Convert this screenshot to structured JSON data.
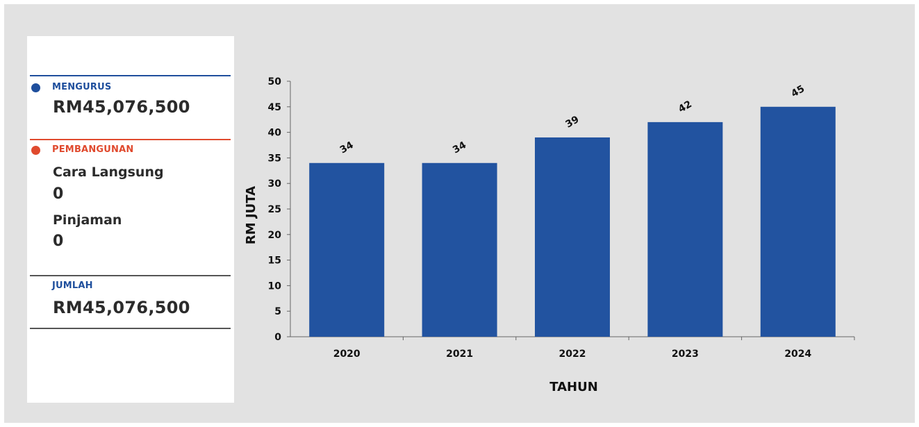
{
  "summary": {
    "mengurus": {
      "label": "MENGURUS",
      "amount": "RM45,076,500"
    },
    "pembangunan": {
      "label": "PEMBANGUNAN",
      "items": [
        {
          "label": "Cara Langsung",
          "value": "0"
        },
        {
          "label": "Pinjaman",
          "value": "0"
        }
      ]
    },
    "jumlah": {
      "label": "JUMLAH",
      "amount": "RM45,076,500"
    }
  },
  "colors": {
    "mengurus": "#1f4f9d",
    "pembangunan": "#e04a2e",
    "bar": "#2253a0",
    "background": "#e2e2e2"
  },
  "chart_data": {
    "type": "bar",
    "categories": [
      "2020",
      "2021",
      "2022",
      "2023",
      "2024"
    ],
    "values": [
      34,
      34,
      39,
      42,
      45
    ],
    "data_labels": [
      "34",
      "34",
      "39",
      "42",
      "45"
    ],
    "xlabel": "TAHUN",
    "ylabel": "RM JUTA",
    "ylim": [
      0,
      50
    ],
    "yticks": [
      "0",
      "5",
      "10",
      "15",
      "20",
      "25",
      "30",
      "35",
      "40",
      "45",
      "50"
    ],
    "grid": false,
    "legend": "none"
  }
}
